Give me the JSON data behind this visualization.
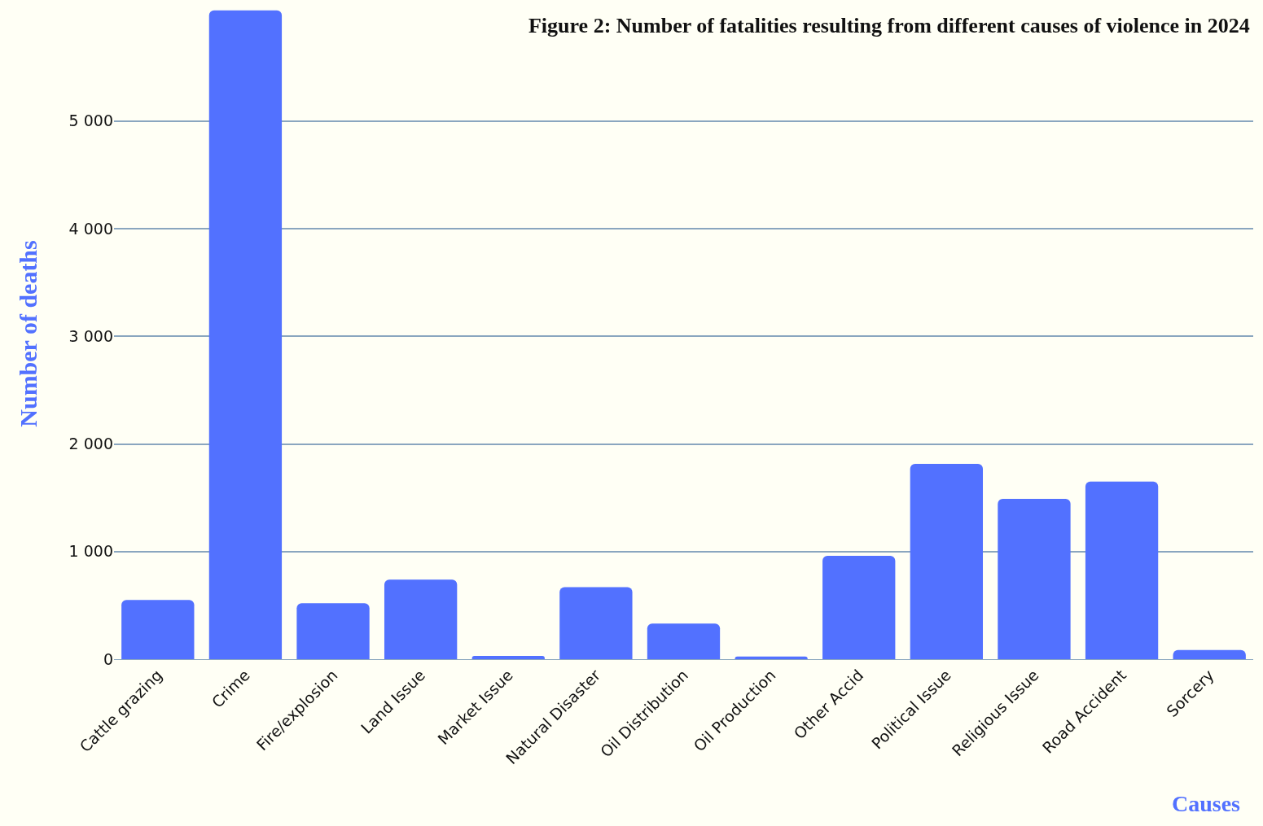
{
  "chart_data": {
    "type": "bar",
    "title": "Figure 2: Number of fatalities resulting from different causes of violence in 2024",
    "xlabel": "Causes",
    "ylabel": "Number of deaths",
    "categories": [
      "Cattle grazing",
      "Crime",
      "Fire/explosion",
      "Land Issue",
      "Market Issue",
      "Natural Disaster",
      "Oil Distribution",
      "Oil Production",
      "Other Accid",
      "Political Issue",
      "Religious Issue",
      "Road Accident",
      "Sorcery"
    ],
    "values": [
      550,
      6030,
      520,
      740,
      30,
      670,
      330,
      25,
      960,
      1815,
      1490,
      1650,
      85
    ],
    "color": "#5271ff",
    "ylim": [
      0,
      6050
    ],
    "yticks": [
      0,
      {
        "value": 1000,
        "label": "1 000"
      },
      {
        "value": 2000,
        "label": "2 000"
      },
      {
        "value": 3000,
        "label": "3 000"
      },
      {
        "value": 4000,
        "label": "4 000"
      },
      {
        "value": 5000,
        "label": "5 000"
      }
    ],
    "grid": "y"
  }
}
